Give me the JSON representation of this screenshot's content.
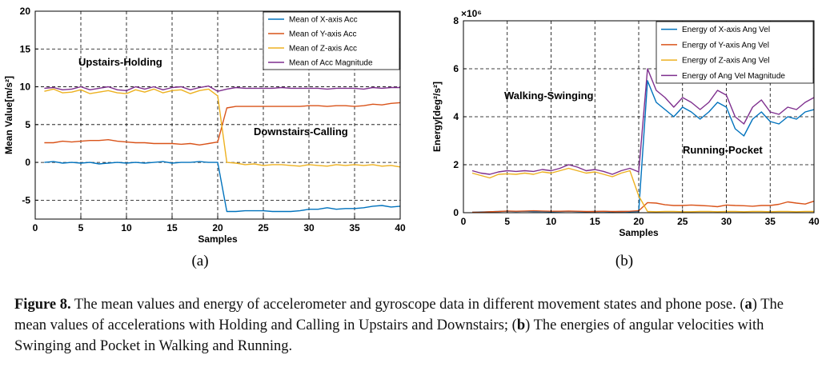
{
  "chart_data": [
    {
      "type": "line",
      "xlabel": "Samples",
      "ylabel": "Mean Value[m/s²]",
      "xlim": [
        0,
        40
      ],
      "ylim": [
        -7.5,
        20
      ],
      "xticks": [
        "0",
        "5",
        "10",
        "15",
        "20",
        "25",
        "30",
        "35",
        "40"
      ],
      "yticks": [
        "20",
        "15",
        "10",
        "5",
        "0",
        "-5"
      ],
      "grid": true,
      "legend_position": "top-right",
      "sublabel": "(a)",
      "annotations": [
        "Upstairs-Holding",
        "Downstairs-Calling"
      ],
      "x": [
        1,
        2,
        3,
        4,
        5,
        6,
        7,
        8,
        9,
        10,
        11,
        12,
        13,
        14,
        15,
        16,
        17,
        18,
        19,
        20,
        21,
        22,
        23,
        24,
        25,
        26,
        27,
        28,
        29,
        30,
        31,
        32,
        33,
        34,
        35,
        36,
        37,
        38,
        39,
        40
      ],
      "series": [
        {
          "name": "Mean of X-axis Acc",
          "color": "#0072BD",
          "values": [
            0.0,
            0.1,
            -0.1,
            0.0,
            -0.1,
            0.0,
            -0.2,
            -0.1,
            0.0,
            -0.1,
            0.0,
            -0.1,
            0.0,
            0.1,
            -0.1,
            0.0,
            0.0,
            0.1,
            0.0,
            0.0,
            -6.5,
            -6.5,
            -6.4,
            -6.4,
            -6.4,
            -6.5,
            -6.5,
            -6.5,
            -6.4,
            -6.2,
            -6.2,
            -6.0,
            -6.2,
            -6.1,
            -6.1,
            -6.0,
            -5.8,
            -5.7,
            -5.9,
            -5.8
          ]
        },
        {
          "name": "Mean of Y-axis Acc",
          "color": "#D95319",
          "values": [
            2.6,
            2.6,
            2.8,
            2.7,
            2.8,
            2.9,
            2.9,
            3.0,
            2.8,
            2.7,
            2.6,
            2.6,
            2.5,
            2.5,
            2.5,
            2.4,
            2.5,
            2.3,
            2.5,
            2.7,
            7.2,
            7.4,
            7.4,
            7.4,
            7.4,
            7.4,
            7.4,
            7.4,
            7.4,
            7.5,
            7.5,
            7.4,
            7.5,
            7.5,
            7.4,
            7.5,
            7.7,
            7.6,
            7.8,
            7.9
          ]
        },
        {
          "name": "Mean of Z-axis Acc",
          "color": "#EDB120",
          "values": [
            9.4,
            9.7,
            9.2,
            9.3,
            9.6,
            9.1,
            9.3,
            9.5,
            9.2,
            9.1,
            9.6,
            9.3,
            9.7,
            9.2,
            9.5,
            9.6,
            9.1,
            9.5,
            9.7,
            8.8,
            0.0,
            -0.1,
            -0.3,
            -0.2,
            -0.4,
            -0.3,
            -0.3,
            -0.4,
            -0.5,
            -0.3,
            -0.4,
            -0.5,
            -0.3,
            -0.4,
            -0.3,
            -0.4,
            -0.3,
            -0.5,
            -0.4,
            -0.6
          ]
        },
        {
          "name": "Mean of Acc Magnitude",
          "color": "#7E2F8E",
          "values": [
            9.8,
            9.9,
            9.6,
            9.7,
            10.0,
            9.6,
            9.8,
            10.0,
            9.6,
            9.5,
            10.0,
            9.7,
            10.0,
            9.6,
            9.9,
            10.0,
            9.6,
            9.9,
            10.1,
            9.4,
            9.7,
            9.9,
            9.8,
            9.8,
            9.8,
            9.8,
            9.9,
            9.8,
            9.8,
            9.8,
            9.8,
            9.7,
            9.8,
            9.8,
            9.8,
            9.7,
            9.9,
            9.8,
            9.9,
            9.9
          ]
        }
      ]
    },
    {
      "type": "line",
      "xlabel": "Samples",
      "ylabel": "Energy[deg²/s²]",
      "multiplier": "×10⁶",
      "xlim": [
        0,
        40
      ],
      "ylim": [
        0,
        8
      ],
      "xticks": [
        "0",
        "5",
        "10",
        "15",
        "20",
        "25",
        "30",
        "35",
        "40"
      ],
      "yticks": [
        "8",
        "6",
        "4",
        "2",
        "0"
      ],
      "grid": true,
      "legend_position": "top-right",
      "sublabel": "(b)",
      "annotations": [
        "Walking-Swinging",
        "Running-Pocket"
      ],
      "x": [
        1,
        2,
        3,
        4,
        5,
        6,
        7,
        8,
        9,
        10,
        11,
        12,
        13,
        14,
        15,
        16,
        17,
        18,
        19,
        20,
        21,
        22,
        23,
        24,
        25,
        26,
        27,
        28,
        29,
        30,
        31,
        32,
        33,
        34,
        35,
        36,
        37,
        38,
        39,
        40
      ],
      "series": [
        {
          "name": "Energy of X-axis Ang Vel",
          "color": "#0072BD",
          "values": [
            0.02,
            0.03,
            0.04,
            0.05,
            0.06,
            0.05,
            0.06,
            0.05,
            0.05,
            0.04,
            0.05,
            0.06,
            0.05,
            0.04,
            0.05,
            0.05,
            0.04,
            0.05,
            0.04,
            0.05,
            5.5,
            4.6,
            4.3,
            4.0,
            4.4,
            4.2,
            3.9,
            4.2,
            4.6,
            4.4,
            3.5,
            3.2,
            3.9,
            4.2,
            3.8,
            3.7,
            4.0,
            3.9,
            4.2,
            4.3
          ]
        },
        {
          "name": "Energy of Y-axis Ang Vel",
          "color": "#D95319",
          "values": [
            0.02,
            0.02,
            0.04,
            0.05,
            0.07,
            0.06,
            0.07,
            0.08,
            0.07,
            0.06,
            0.06,
            0.07,
            0.06,
            0.05,
            0.05,
            0.06,
            0.05,
            0.05,
            0.06,
            0.08,
            0.42,
            0.4,
            0.33,
            0.3,
            0.3,
            0.32,
            0.3,
            0.28,
            0.25,
            0.32,
            0.3,
            0.29,
            0.27,
            0.3,
            0.3,
            0.35,
            0.45,
            0.4,
            0.36,
            0.48
          ]
        },
        {
          "name": "Energy of Z-axis Ang Vel",
          "color": "#EDB120",
          "values": [
            1.65,
            1.55,
            1.45,
            1.6,
            1.62,
            1.6,
            1.65,
            1.6,
            1.7,
            1.65,
            1.75,
            1.85,
            1.75,
            1.65,
            1.7,
            1.6,
            1.5,
            1.65,
            1.75,
            0.7,
            0.05,
            0.04,
            0.05,
            0.05,
            0.04,
            0.04,
            0.05,
            0.05,
            0.04,
            0.05,
            0.05,
            0.04,
            0.05,
            0.05,
            0.04,
            0.05,
            0.05,
            0.04,
            0.05,
            0.05
          ]
        },
        {
          "name": "Energy of Ang Vel Magnitude",
          "color": "#7E2F8E",
          "values": [
            1.75,
            1.65,
            1.6,
            1.7,
            1.75,
            1.72,
            1.75,
            1.72,
            1.8,
            1.75,
            1.85,
            2.0,
            1.9,
            1.75,
            1.8,
            1.72,
            1.6,
            1.75,
            1.85,
            1.7,
            6.0,
            5.1,
            4.8,
            4.4,
            4.8,
            4.6,
            4.3,
            4.6,
            5.1,
            4.9,
            4.0,
            3.7,
            4.4,
            4.7,
            4.2,
            4.1,
            4.4,
            4.3,
            4.6,
            4.8
          ]
        }
      ]
    }
  ],
  "caption": {
    "label": "Figure 8.",
    "text": "The mean values and energy of accelerometer and gyroscope data in different movement states and phone pose. (",
    "part_a": "a",
    "text_a": ") The mean values of accelerations with Holding and Calling in Upstairs and Downstairs; (",
    "part_b": "b",
    "text_b": ") The energies of angular velocities with Swinging and Pocket in Walking and Running."
  }
}
